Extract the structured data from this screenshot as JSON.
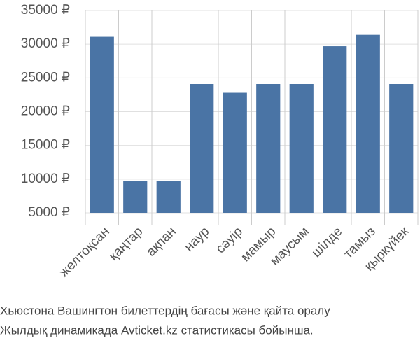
{
  "chart_data": {
    "type": "bar",
    "title": [
      "Хьюстона Вашингтон билеттердің бағасы және қайта оралу",
      "Жылдық динамикада Avticket.kz статистикасы бойынша."
    ],
    "categories": [
      "желтоқсан",
      "қаңтар",
      "ақпан",
      "наур",
      "сәуір",
      "мамыр",
      "маусым",
      "шілде",
      "тамыз",
      "қыркүйек"
    ],
    "values": [
      31100,
      9700,
      9700,
      24100,
      22800,
      24100,
      24100,
      29700,
      31400,
      24100
    ],
    "color": "#4a74a5",
    "ylim": [
      5000,
      35000
    ],
    "yticks": [
      {
        "value": 5000,
        "label": "5000 ₽"
      },
      {
        "value": 10000,
        "label": "10000 ₽"
      },
      {
        "value": 15000,
        "label": "15000 ₽"
      },
      {
        "value": 20000,
        "label": "20000 ₽"
      },
      {
        "value": 25000,
        "label": "25000 ₽"
      },
      {
        "value": 30000,
        "label": "30000 ₽"
      },
      {
        "value": 35000,
        "label": "35000 ₽"
      }
    ],
    "grid": true
  }
}
